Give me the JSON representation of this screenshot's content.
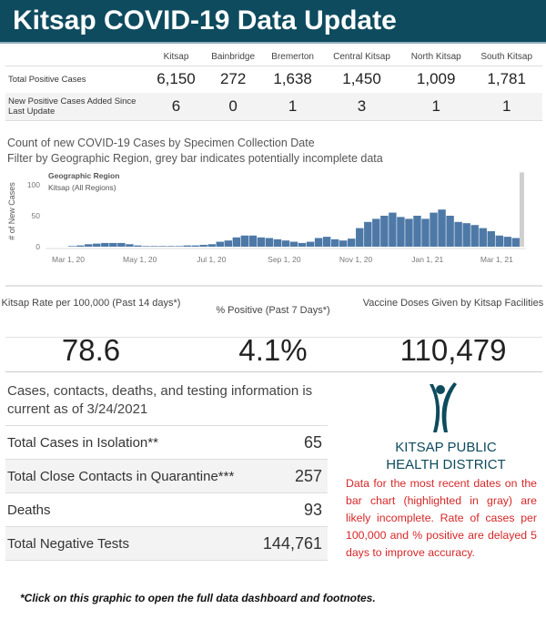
{
  "header": {
    "title": "Kitsap COVID-19 Data Update"
  },
  "regions_table": {
    "columns": [
      "Kitsap",
      "Bainbridge",
      "Bremerton",
      "Central Kitsap",
      "North Kitsap",
      "South Kitsap"
    ],
    "rows": [
      {
        "label": "Total Positive Cases",
        "values": [
          "6,150",
          "272",
          "1,638",
          "1,450",
          "1,009",
          "1,781"
        ]
      },
      {
        "label": "New Positive Cases Added Since Last Update",
        "values": [
          "6",
          "0",
          "1",
          "3",
          "1",
          "1"
        ]
      }
    ]
  },
  "chart_data": {
    "type": "bar",
    "title": "Count of new COVID-19 Cases by Specimen Collection Date",
    "subtitle": "Filter by Geographic Region, grey bar indicates potentially incomplete data",
    "ylabel": "# of New Cases",
    "legend_title": "Geographic Region",
    "legend_value": "Kitsap (All Regions)",
    "ylim": [
      0,
      120
    ],
    "yticks": [
      "0",
      "50",
      "100"
    ],
    "ytick_values": [
      0,
      50,
      100
    ],
    "xticks": [
      "Mar 1, 20",
      "May 1, 20",
      "Jul 1, 20",
      "Sep 1, 20",
      "Nov 1, 20",
      "Jan 1, 21",
      "Mar 1, 21"
    ],
    "xtick_days": [
      0,
      61,
      122,
      184,
      245,
      306,
      365
    ],
    "bin_days": 7,
    "values": [
      1,
      2,
      4,
      5,
      6,
      6,
      6,
      4,
      2,
      1,
      1,
      1,
      1,
      1,
      2,
      2,
      3,
      4,
      8,
      10,
      15,
      18,
      18,
      15,
      14,
      12,
      10,
      8,
      6,
      8,
      14,
      16,
      12,
      10,
      13,
      30,
      40,
      45,
      50,
      55,
      48,
      45,
      50,
      45,
      55,
      60,
      50,
      40,
      38,
      35,
      30,
      25,
      18,
      16,
      14
    ],
    "series_color": "#4e79a7",
    "incomplete_color": "#cfcfcf",
    "incomplete_day": 386
  },
  "stats": [
    {
      "label": "Kitsap Rate per 100,000 (Past 14 days*)",
      "value": "78.6"
    },
    {
      "label": "% Positive (Past 7 Days*)",
      "value": "4.1%"
    },
    {
      "label": "Vaccine Doses Given by Kitsap Facilities",
      "value": "110,479"
    }
  ],
  "info": {
    "heading": "Cases, contacts, deaths, and testing information is current as of 3/24/2021",
    "rows": [
      {
        "label": "Total Cases in Isolation**",
        "value": "65"
      },
      {
        "label": "Total Close Contacts in Quarantine***",
        "value": "257"
      },
      {
        "label": "Deaths",
        "value": "93"
      },
      {
        "label": "Total Negative Tests",
        "value": "144,761"
      }
    ]
  },
  "logo": {
    "line1": "KITSAP PUBLIC",
    "line2": "HEALTH DISTRICT",
    "color": "#0e4b5e"
  },
  "note": "Data for the most recent dates on the bar chart (highlighted in gray) are likely incomplete. Rate of cases per 100,000 and % positive are delayed 5 days to improve accuracy.",
  "footnote": "*Click on this graphic to open the full data dashboard and footnotes."
}
